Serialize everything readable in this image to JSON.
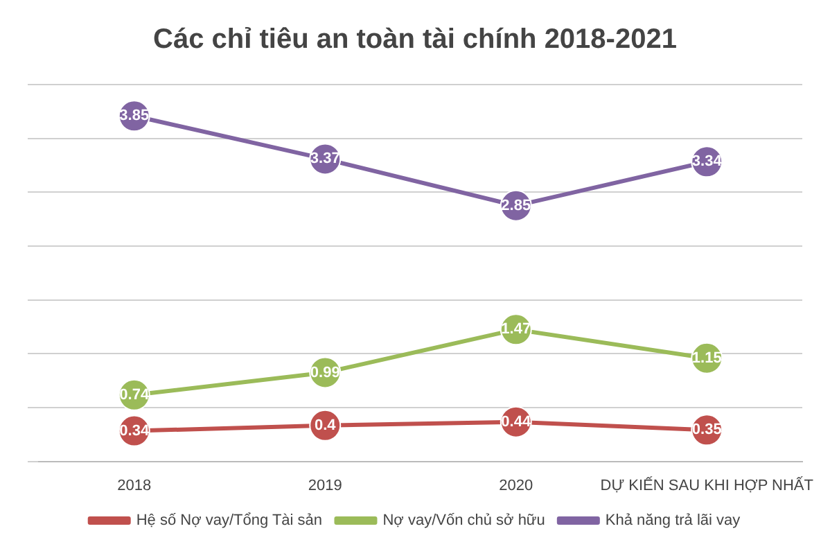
{
  "chart_data": {
    "type": "line",
    "title": "Các chỉ tiêu an toàn tài chính 2018-2021",
    "categories": [
      "2018",
      "2019",
      "2020",
      "DỰ KIẾN SAU KHI HỢP NHẤT"
    ],
    "series": [
      {
        "name": "Hệ số Nợ vay/Tổng Tài sản",
        "color": "#c0504d",
        "values": [
          0.34,
          0.4,
          0.44,
          0.35
        ]
      },
      {
        "name": "Nợ vay/Vốn chủ sở hữu",
        "color": "#9bbb59",
        "values": [
          0.74,
          0.99,
          1.47,
          1.15
        ]
      },
      {
        "name": "Khả năng trả lãi vay",
        "color": "#8064a2",
        "values": [
          3.85,
          3.37,
          2.85,
          3.34
        ]
      }
    ],
    "ylim": [
      0,
      4.2
    ],
    "yticks": [
      {
        "value": 0,
        "label": null
      },
      {
        "value": 0.6,
        "label": null
      },
      {
        "value": 1.2,
        "label": null
      },
      {
        "value": 1.8,
        "label": null
      },
      {
        "value": 2.4,
        "label": null
      },
      {
        "value": 3,
        "label": null
      },
      {
        "value": 3.6,
        "label": null
      },
      {
        "value": 4.2,
        "label": null
      }
    ],
    "tick_labels": "x",
    "grid": "y",
    "legend": "bottom",
    "marker": "circle",
    "line_style": "solid",
    "data_labels": true
  }
}
